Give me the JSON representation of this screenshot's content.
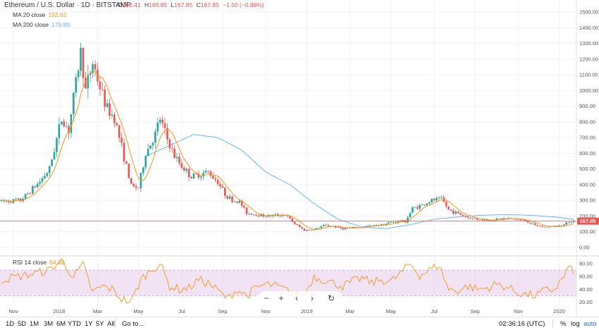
{
  "header": {
    "symbol": "Ethereum / U.S. Dollar · 1D · BITSTAMP",
    "o_label": "O",
    "o": "169.41",
    "h_label": "H",
    "h": "169.85",
    "l_label": "L",
    "l": "167.85",
    "c_label": "C",
    "c": "167.85",
    "change": "−1.50 (−0.89%)",
    "ma20_label": "MA 20 close",
    "ma20": "152.82",
    "ma200_label": "MA 200 close",
    "ma200": "179.89",
    "rsi_label": "RSI 14 close",
    "rsi": "64.59"
  },
  "colors": {
    "up": "#26a69a",
    "down": "#ef5350",
    "ma20": "#f7931a",
    "ma200": "#64b5f6",
    "rsi": "#f7931a",
    "rsi_band": "#e1bee7",
    "price_label": "#ef5350"
  },
  "price_label": "167.85",
  "toolbar": {
    "ranges": [
      "1D",
      "5D",
      "1M",
      "3M",
      "6M",
      "YTD",
      "1Y",
      "5Y",
      "All"
    ],
    "goto": "Go to...",
    "time": "02:36:16 (UTC)",
    "percent": "%",
    "log": "log",
    "auto": "auto"
  },
  "nav_icons": [
    "minus-icon",
    "plus-icon",
    "chevron-left-icon",
    "chevron-right-icon",
    "reset-icon"
  ],
  "chart_data": [
    {
      "type": "candlestick",
      "series_names": [
        "MA 20 close",
        "MA 200 close"
      ],
      "x_ticks": [
        "Nov",
        "2018",
        "Mar",
        "May",
        "Jul",
        "Sep",
        "Nov",
        "2019",
        "Mar",
        "May",
        "Jul",
        "Sep",
        "Nov",
        "2020"
      ],
      "y_ticks": [
        "1500.00",
        "1400.00",
        "1300.00",
        "1200.00",
        "1100.00",
        "1000.00",
        "900.00",
        "800.00",
        "700.00",
        "600.00",
        "500.00",
        "400.00",
        "300.00",
        "200.00",
        "100.00",
        "0.00"
      ],
      "ylim": [
        0,
        1500
      ],
      "close_anchors": [
        [
          0,
          295
        ],
        [
          8,
          300
        ],
        [
          16,
          420
        ],
        [
          20,
          500
        ],
        [
          25,
          820
        ],
        [
          28,
          750
        ],
        [
          33,
          1250
        ],
        [
          35,
          1000
        ],
        [
          38,
          1180
        ],
        [
          41,
          1020
        ],
        [
          44,
          880
        ],
        [
          47,
          830
        ],
        [
          50,
          640
        ],
        [
          54,
          390
        ],
        [
          57,
          380
        ],
        [
          60,
          600
        ],
        [
          64,
          720
        ],
        [
          66,
          820
        ],
        [
          69,
          690
        ],
        [
          72,
          580
        ],
        [
          75,
          520
        ],
        [
          79,
          450
        ],
        [
          83,
          470
        ],
        [
          86,
          480
        ],
        [
          90,
          420
        ],
        [
          93,
          340
        ],
        [
          96,
          300
        ],
        [
          99,
          290
        ],
        [
          102,
          220
        ],
        [
          106,
          210
        ],
        [
          110,
          200
        ],
        [
          114,
          205
        ],
        [
          118,
          210
        ],
        [
          122,
          150
        ],
        [
          126,
          110
        ],
        [
          130,
          115
        ],
        [
          134,
          140
        ],
        [
          138,
          135
        ],
        [
          142,
          120
        ],
        [
          146,
          125
        ],
        [
          150,
          130
        ],
        [
          154,
          140
        ],
        [
          158,
          145
        ],
        [
          162,
          160
        ],
        [
          166,
          170
        ],
        [
          168,
          165
        ],
        [
          171,
          250
        ],
        [
          175,
          270
        ],
        [
          179,
          300
        ],
        [
          183,
          310
        ],
        [
          186,
          240
        ],
        [
          190,
          215
        ],
        [
          194,
          190
        ],
        [
          198,
          180
        ],
        [
          202,
          175
        ],
        [
          206,
          180
        ],
        [
          210,
          185
        ],
        [
          214,
          180
        ],
        [
          218,
          170
        ],
        [
          222,
          140
        ],
        [
          226,
          130
        ],
        [
          230,
          135
        ],
        [
          234,
          145
        ],
        [
          236,
          165
        ],
        [
          238,
          168
        ]
      ],
      "ma200_anchors": [
        [
          60,
          580
        ],
        [
          80,
          720
        ],
        [
          90,
          700
        ],
        [
          100,
          620
        ],
        [
          110,
          480
        ],
        [
          120,
          400
        ],
        [
          130,
          280
        ],
        [
          140,
          180
        ],
        [
          150,
          130
        ],
        [
          160,
          120
        ],
        [
          170,
          145
        ],
        [
          180,
          180
        ],
        [
          190,
          195
        ],
        [
          200,
          205
        ],
        [
          210,
          210
        ],
        [
          220,
          205
        ],
        [
          230,
          195
        ],
        [
          238,
          180
        ]
      ],
      "count": 239
    },
    {
      "type": "line",
      "series_names": [
        "RSI 14 close"
      ],
      "y_ticks": [
        "80.00",
        "60.00",
        "40.00",
        "20.00"
      ],
      "ylim": [
        15,
        90
      ],
      "band": [
        30,
        70
      ],
      "anchors": [
        [
          0,
          55
        ],
        [
          10,
          62
        ],
        [
          20,
          70
        ],
        [
          25,
          85
        ],
        [
          30,
          60
        ],
        [
          34,
          78
        ],
        [
          38,
          35
        ],
        [
          42,
          45
        ],
        [
          46,
          40
        ],
        [
          50,
          25
        ],
        [
          54,
          20
        ],
        [
          58,
          55
        ],
        [
          62,
          70
        ],
        [
          66,
          80
        ],
        [
          70,
          45
        ],
        [
          74,
          40
        ],
        [
          78,
          42
        ],
        [
          82,
          55
        ],
        [
          86,
          50
        ],
        [
          90,
          38
        ],
        [
          94,
          25
        ],
        [
          98,
          40
        ],
        [
          102,
          30
        ],
        [
          106,
          42
        ],
        [
          110,
          48
        ],
        [
          114,
          45
        ],
        [
          118,
          40
        ],
        [
          122,
          30
        ],
        [
          126,
          32
        ],
        [
          130,
          60
        ],
        [
          134,
          55
        ],
        [
          138,
          50
        ],
        [
          142,
          45
        ],
        [
          146,
          52
        ],
        [
          150,
          58
        ],
        [
          154,
          50
        ],
        [
          158,
          55
        ],
        [
          162,
          52
        ],
        [
          166,
          65
        ],
        [
          170,
          80
        ],
        [
          174,
          62
        ],
        [
          178,
          70
        ],
        [
          182,
          78
        ],
        [
          186,
          40
        ],
        [
          190,
          38
        ],
        [
          194,
          45
        ],
        [
          198,
          40
        ],
        [
          202,
          42
        ],
        [
          206,
          48
        ],
        [
          210,
          44
        ],
        [
          214,
          36
        ],
        [
          218,
          32
        ],
        [
          222,
          30
        ],
        [
          226,
          38
        ],
        [
          230,
          40
        ],
        [
          234,
          60
        ],
        [
          236,
          75
        ],
        [
          238,
          64.59
        ]
      ]
    }
  ]
}
